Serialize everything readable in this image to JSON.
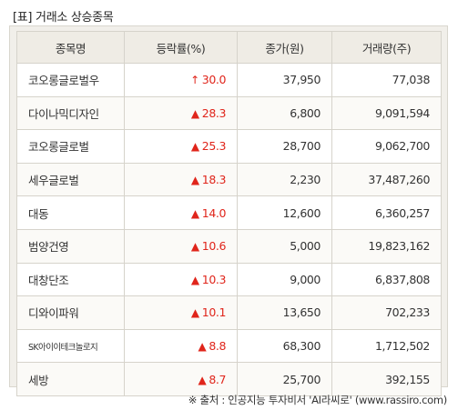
{
  "caption": "[표] 거래소 상승종목",
  "headers": {
    "name": "종목명",
    "rate": "등락률(%)",
    "price": "종가(원)",
    "volume": "거래량(주)"
  },
  "rows": [
    {
      "name": "코오롱글로벌우",
      "arrow": "↑",
      "rate": "30.0",
      "price": "37,950",
      "volume": "77,038"
    },
    {
      "name": "다이나믹디자인",
      "arrow": "▲",
      "rate": "28.3",
      "price": "6,800",
      "volume": "9,091,594"
    },
    {
      "name": "코오롱글로벌",
      "arrow": "▲",
      "rate": "25.3",
      "price": "28,700",
      "volume": "9,062,700"
    },
    {
      "name": "세우글로벌",
      "arrow": "▲",
      "rate": "18.3",
      "price": "2,230",
      "volume": "37,487,260"
    },
    {
      "name": "대동",
      "arrow": "▲",
      "rate": "14.0",
      "price": "12,600",
      "volume": "6,360,257"
    },
    {
      "name": "범양건영",
      "arrow": "▲",
      "rate": "10.6",
      "price": "5,000",
      "volume": "19,823,162"
    },
    {
      "name": "대창단조",
      "arrow": "▲",
      "rate": "10.3",
      "price": "9,000",
      "volume": "6,837,808"
    },
    {
      "name": "디와이파워",
      "arrow": "▲",
      "rate": "10.1",
      "price": "13,650",
      "volume": "702,233"
    },
    {
      "name": "SK아이이테크놀로지",
      "arrow": "▲",
      "rate": "8.8",
      "price": "68,300",
      "volume": "1,712,502"
    },
    {
      "name": "세방",
      "arrow": "▲",
      "rate": "8.7",
      "price": "25,700",
      "volume": "392,155"
    }
  ],
  "source": "※ 출처 : 인공지능 투자비서 'AI라씨로' (www.rassiro.com)",
  "colors": {
    "up": "#e0251b",
    "header_bg": "#efece5",
    "frame_bg": "#f1efea"
  }
}
